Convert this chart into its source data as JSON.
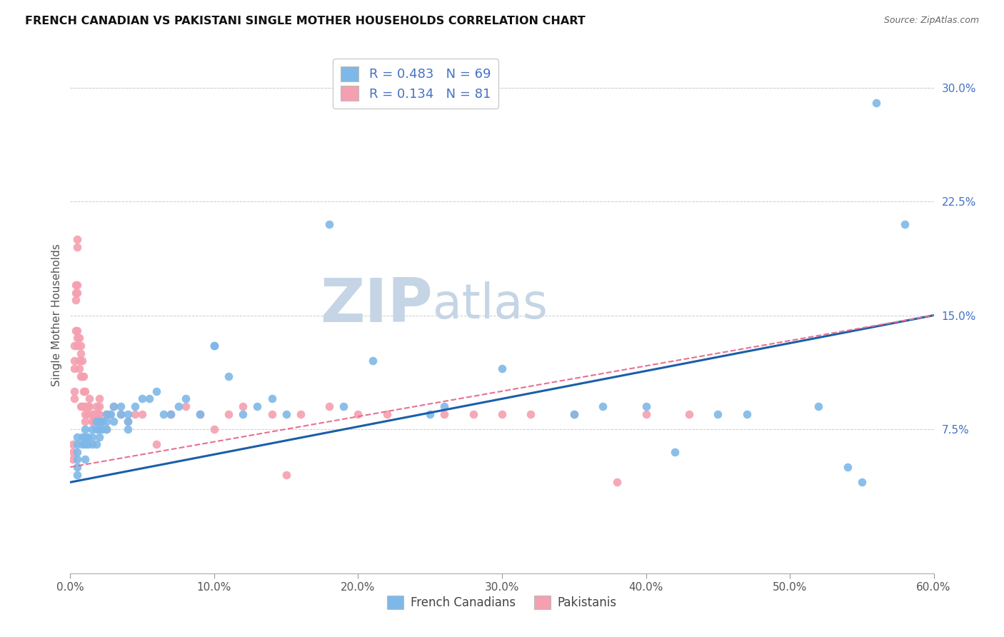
{
  "title": "FRENCH CANADIAN VS PAKISTANI SINGLE MOTHER HOUSEHOLDS CORRELATION CHART",
  "source": "Source: ZipAtlas.com",
  "ylabel": "Single Mother Households",
  "xlim": [
    0.0,
    0.6
  ],
  "ylim": [
    -0.02,
    0.32
  ],
  "plot_ylim": [
    -0.02,
    0.32
  ],
  "xtick_labels": [
    "0.0%",
    "10.0%",
    "20.0%",
    "30.0%",
    "40.0%",
    "50.0%",
    "60.0%"
  ],
  "xtick_vals": [
    0.0,
    0.1,
    0.2,
    0.3,
    0.4,
    0.5,
    0.6
  ],
  "ytick_labels_right": [
    "30.0%",
    "22.5%",
    "15.0%",
    "7.5%"
  ],
  "ytick_vals_right": [
    0.3,
    0.225,
    0.15,
    0.075
  ],
  "blue_color": "#7EB8E8",
  "pink_color": "#F4A0B0",
  "blue_line_color": "#1A5FA8",
  "pink_line_color": "#E87090",
  "legend_blue_label": "R = 0.483   N = 69",
  "legend_pink_label": "R = 0.134   N = 81",
  "watermark_zip": "ZIP",
  "watermark_atlas": "atlas",
  "watermark_color": "#C8D8E8",
  "blue_R": 0.483,
  "blue_N": 69,
  "pink_R": 0.134,
  "pink_N": 81,
  "blue_x": [
    0.005,
    0.005,
    0.005,
    0.005,
    0.005,
    0.005,
    0.008,
    0.008,
    0.01,
    0.01,
    0.01,
    0.01,
    0.012,
    0.012,
    0.015,
    0.015,
    0.015,
    0.018,
    0.018,
    0.018,
    0.02,
    0.02,
    0.02,
    0.022,
    0.022,
    0.025,
    0.025,
    0.025,
    0.028,
    0.03,
    0.03,
    0.035,
    0.035,
    0.04,
    0.04,
    0.04,
    0.045,
    0.05,
    0.055,
    0.06,
    0.065,
    0.07,
    0.075,
    0.08,
    0.09,
    0.1,
    0.1,
    0.11,
    0.12,
    0.13,
    0.14,
    0.15,
    0.18,
    0.19,
    0.21,
    0.25,
    0.26,
    0.3,
    0.35,
    0.37,
    0.4,
    0.42,
    0.45,
    0.47,
    0.52,
    0.54,
    0.55,
    0.56,
    0.58
  ],
  "blue_y": [
    0.07,
    0.065,
    0.06,
    0.055,
    0.05,
    0.045,
    0.07,
    0.065,
    0.075,
    0.07,
    0.065,
    0.055,
    0.07,
    0.065,
    0.075,
    0.07,
    0.065,
    0.08,
    0.075,
    0.065,
    0.08,
    0.075,
    0.07,
    0.08,
    0.075,
    0.085,
    0.08,
    0.075,
    0.085,
    0.09,
    0.08,
    0.09,
    0.085,
    0.085,
    0.08,
    0.075,
    0.09,
    0.095,
    0.095,
    0.1,
    0.085,
    0.085,
    0.09,
    0.095,
    0.085,
    0.13,
    0.13,
    0.11,
    0.085,
    0.09,
    0.095,
    0.085,
    0.21,
    0.09,
    0.12,
    0.085,
    0.09,
    0.115,
    0.085,
    0.09,
    0.09,
    0.06,
    0.085,
    0.085,
    0.09,
    0.05,
    0.04,
    0.29,
    0.21
  ],
  "pink_x": [
    0.002,
    0.002,
    0.002,
    0.003,
    0.003,
    0.003,
    0.003,
    0.003,
    0.004,
    0.004,
    0.004,
    0.004,
    0.005,
    0.005,
    0.005,
    0.005,
    0.005,
    0.005,
    0.005,
    0.006,
    0.006,
    0.006,
    0.007,
    0.007,
    0.007,
    0.007,
    0.008,
    0.008,
    0.008,
    0.009,
    0.009,
    0.009,
    0.01,
    0.01,
    0.01,
    0.01,
    0.012,
    0.012,
    0.013,
    0.013,
    0.015,
    0.015,
    0.016,
    0.016,
    0.017,
    0.018,
    0.018,
    0.019,
    0.02,
    0.02,
    0.02,
    0.022,
    0.025,
    0.025,
    0.027,
    0.03,
    0.035,
    0.04,
    0.045,
    0.05,
    0.06,
    0.07,
    0.08,
    0.09,
    0.1,
    0.11,
    0.12,
    0.14,
    0.15,
    0.16,
    0.18,
    0.2,
    0.22,
    0.26,
    0.28,
    0.3,
    0.32,
    0.35,
    0.38,
    0.4,
    0.43
  ],
  "pink_y": [
    0.065,
    0.06,
    0.055,
    0.13,
    0.12,
    0.115,
    0.1,
    0.095,
    0.17,
    0.165,
    0.16,
    0.14,
    0.2,
    0.195,
    0.17,
    0.165,
    0.14,
    0.135,
    0.13,
    0.135,
    0.12,
    0.115,
    0.13,
    0.125,
    0.11,
    0.09,
    0.12,
    0.11,
    0.09,
    0.11,
    0.1,
    0.09,
    0.1,
    0.09,
    0.085,
    0.08,
    0.09,
    0.085,
    0.095,
    0.09,
    0.085,
    0.08,
    0.085,
    0.08,
    0.085,
    0.09,
    0.08,
    0.085,
    0.095,
    0.09,
    0.085,
    0.08,
    0.085,
    0.075,
    0.085,
    0.09,
    0.085,
    0.08,
    0.085,
    0.085,
    0.065,
    0.085,
    0.09,
    0.085,
    0.075,
    0.085,
    0.09,
    0.085,
    0.045,
    0.085,
    0.09,
    0.085,
    0.085,
    0.085,
    0.085,
    0.085,
    0.085,
    0.085,
    0.04,
    0.085,
    0.085
  ]
}
